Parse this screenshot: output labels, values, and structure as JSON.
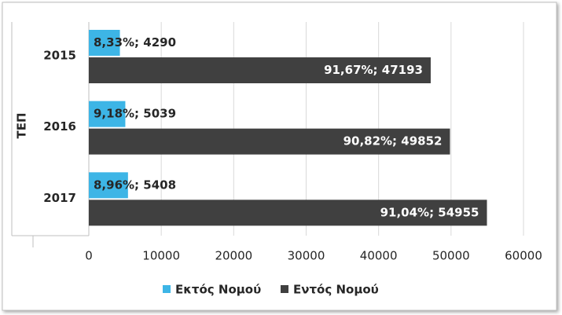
{
  "chart_data": {
    "type": "hbar",
    "group_label": "ΤΕΠ",
    "categories": [
      "2015",
      "2016",
      "2017"
    ],
    "series": [
      {
        "name": "Εκτός Νομού",
        "color": "#3db5e6",
        "values": [
          4290,
          5039,
          5408
        ],
        "value_labels": [
          "8,33%; 4290",
          "9,18%; 5039",
          "8,96%; 5408"
        ]
      },
      {
        "name": "Εντός Νομού",
        "color": "#404040",
        "values": [
          47193,
          49852,
          54955
        ],
        "value_labels": [
          "91,67%; 47193",
          "90,82%; 49852",
          "91,04%; 54955"
        ]
      }
    ],
    "xlim": [
      0,
      60000
    ],
    "xticks": [
      0,
      10000,
      20000,
      30000,
      40000,
      50000,
      60000
    ],
    "grid": true,
    "legend": "bottom"
  }
}
